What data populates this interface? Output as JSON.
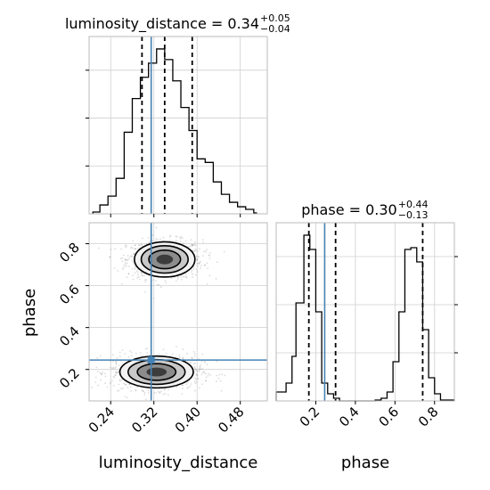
{
  "chart_data": {
    "type": "corner",
    "parameters": [
      "luminosity_distance",
      "phase"
    ],
    "truth_values": {
      "luminosity_distance": 0.315,
      "phase": 0.245
    },
    "truth_color": "#4682b4",
    "panels": {
      "luminosity_distance_hist": {
        "type": "histogram",
        "title": {
          "main": "luminosity_distance = 0.34",
          "sup": "+0.05",
          "sub": "−0.04"
        },
        "xlim": [
          0.2,
          0.53
        ],
        "ylim": [
          0,
          1.0
        ],
        "bin_edges": [
          0.207,
          0.22,
          0.235,
          0.25,
          0.265,
          0.28,
          0.295,
          0.31,
          0.325,
          0.34,
          0.355,
          0.37,
          0.385,
          0.4,
          0.415,
          0.43,
          0.445,
          0.46,
          0.475,
          0.49,
          0.505,
          0.51
        ],
        "counts": [
          0.01,
          0.05,
          0.1,
          0.2,
          0.46,
          0.65,
          0.77,
          0.85,
          0.93,
          0.87,
          0.75,
          0.6,
          0.47,
          0.31,
          0.29,
          0.18,
          0.11,
          0.065,
          0.04,
          0.025,
          0.005
        ],
        "quantiles": [
          0.298,
          0.34,
          0.391
        ],
        "truth": 0.315
      },
      "phase_hist": {
        "type": "histogram",
        "title": {
          "main": "phase = 0.30",
          "sup": "+0.44",
          "sub": "−0.13"
        },
        "xlim": [
          0.0,
          0.9
        ],
        "ylim": [
          0,
          1.0
        ],
        "bin_edges": [
          0.0,
          0.05,
          0.08,
          0.1,
          0.14,
          0.17,
          0.2,
          0.23,
          0.26,
          0.29,
          0.32,
          0.35,
          0.38,
          0.41,
          0.44,
          0.47,
          0.5,
          0.53,
          0.56,
          0.59,
          0.62,
          0.65,
          0.68,
          0.71,
          0.74,
          0.77,
          0.8,
          0.83,
          0.9
        ],
        "counts": [
          0.05,
          0.1,
          0.25,
          0.55,
          0.93,
          0.85,
          0.5,
          0.1,
          0.04,
          0.015,
          0.0,
          0.0,
          0.0,
          0.0,
          0.0,
          0.0,
          0.005,
          0.015,
          0.05,
          0.22,
          0.5,
          0.85,
          0.86,
          0.78,
          0.4,
          0.13,
          0.04,
          0.005
        ],
        "quantiles": [
          0.165,
          0.3,
          0.74
        ],
        "truth": 0.245
      },
      "joint": {
        "type": "contour",
        "xlim": [
          0.2,
          0.53
        ],
        "ylim": [
          0.05,
          0.9
        ],
        "modes": [
          {
            "x": 0.34,
            "y": 0.725,
            "sx": 0.028,
            "sy": 0.042
          },
          {
            "x": 0.325,
            "y": 0.188,
            "sx": 0.034,
            "sy": 0.038
          }
        ],
        "contour_levels": [
          0.118,
          0.393,
          0.675,
          0.865
        ]
      }
    },
    "axes": {
      "x_label_left": "luminosity_distance",
      "x_label_right": "phase",
      "y_label": "phase",
      "luminosity_distance_ticks": [
        "0.24",
        "0.32",
        "0.40",
        "0.48"
      ],
      "luminosity_distance_tick_values": [
        0.24,
        0.32,
        0.4,
        0.48
      ],
      "phase_ticks": [
        "0.2",
        "0.4",
        "0.6",
        "0.8"
      ],
      "phase_tick_values": [
        0.2,
        0.4,
        0.6,
        0.8
      ]
    },
    "grid": true
  }
}
